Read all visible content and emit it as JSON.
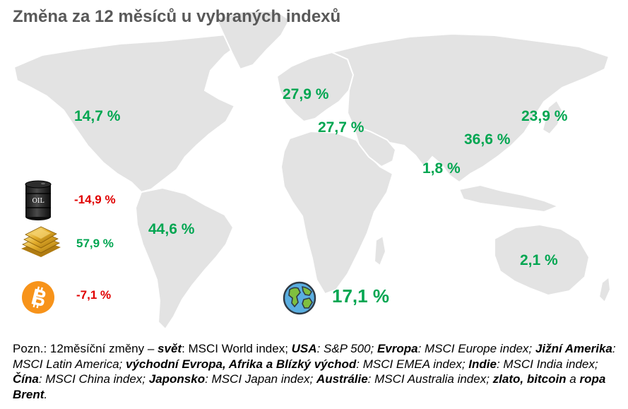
{
  "title": "Změna za 12 měsíců u vybraných indexů",
  "regions": {
    "usa": "14,7 %",
    "europe": "27,9 %",
    "emea": "27,7 %",
    "china": "36,6 %",
    "japan": "23,9 %",
    "india": "1,8 %",
    "latin_america": "44,6 %",
    "australia": "2,1 %",
    "world": "17,1 %"
  },
  "commodities": {
    "oil": "-14,9 %",
    "gold": "57,9 %",
    "bitcoin": "-7,1 %"
  },
  "icons": {
    "oil": "oil-barrel-icon",
    "gold": "gold-bars-icon",
    "bitcoin": "bitcoin-icon",
    "world": "globe-icon"
  },
  "oil_label": "OIL",
  "colors": {
    "positive": "#00a651",
    "negative": "#e00000",
    "title": "#595959",
    "land": "#e3e3e3"
  },
  "note": {
    "prefix": "Pozn.: 12měsíční změny – ",
    "svet_label": "svět",
    "svet_value": ": MSCI World index; ",
    "usa_label": "USA",
    "usa_value": ": S&P 500; ",
    "evropa_label": "Evropa",
    "evropa_value": ": MSCI Europe index; ",
    "jam_label": "Jižní Amerika",
    "jam_value": ": MSCI Latin America; ",
    "emea_label": "východní Evropa, Afrika a Blízký východ",
    "emea_value": ": MSCI EMEA index; ",
    "indie_label": "Indie",
    "indie_value": ": MSCI India index; ",
    "cina_label": "Čína",
    "cina_value": ": MSCI China index; ",
    "japonsko_label": "Japonsko",
    "japonsko_value": ": MSCI Japan index; ",
    "australie_label": "Austrálie",
    "australie_value": ": MSCI Australia index; ",
    "commodities_label_1": "zlato, bitcoin",
    "commodities_joiner": " a ",
    "commodities_label_2": "ropa Brent",
    "end": "."
  }
}
